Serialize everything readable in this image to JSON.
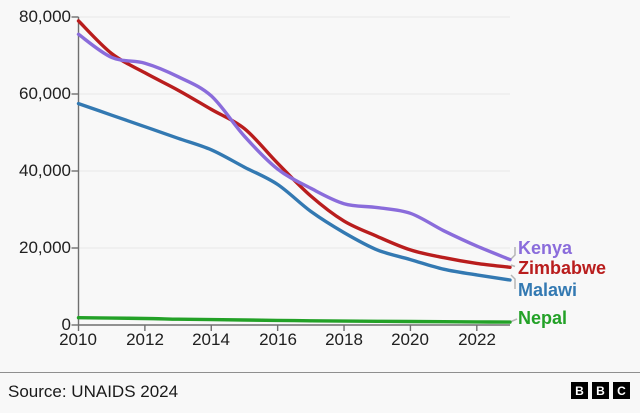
{
  "chart_data": {
    "type": "line",
    "x": [
      2010,
      2011,
      2012,
      2013,
      2014,
      2015,
      2016,
      2017,
      2018,
      2019,
      2020,
      2021,
      2022,
      2023
    ],
    "series": [
      {
        "name": "Kenya",
        "color": "#8a6cdb",
        "values": [
          75500,
          69500,
          68000,
          64500,
          59500,
          49000,
          40500,
          35500,
          31500,
          30500,
          29000,
          24500,
          20500,
          17000
        ]
      },
      {
        "name": "Zimbabwe",
        "color": "#b91d1d",
        "values": [
          79000,
          70500,
          65500,
          61000,
          56000,
          51000,
          42000,
          33500,
          27000,
          23000,
          19500,
          17500,
          16000,
          15000
        ]
      },
      {
        "name": "Malawi",
        "color": "#3379b2",
        "values": [
          57500,
          54500,
          51500,
          48500,
          45500,
          41000,
          36500,
          29500,
          24000,
          19500,
          17000,
          14500,
          13000,
          11700
        ]
      },
      {
        "name": "Nepal",
        "color": "#23a127",
        "values": [
          1900,
          1800,
          1700,
          1500,
          1400,
          1300,
          1200,
          1100,
          1000,
          950,
          900,
          850,
          800,
          750
        ]
      }
    ],
    "ylim": [
      0,
      80000
    ],
    "ytick_values": [
      80000,
      60000,
      40000,
      20000,
      0
    ],
    "ytick_labels": [
      "80,000",
      "60,000",
      "40,000",
      "20,000",
      "0"
    ],
    "xtick_values": [
      2010,
      2012,
      2014,
      2016,
      2018,
      2020,
      2022
    ],
    "xtick_labels": [
      "2010",
      "2012",
      "2014",
      "2016",
      "2018",
      "2020",
      "2022"
    ],
    "title": "",
    "xlabel": "",
    "ylabel": "",
    "grid": "horizontal",
    "legend_position": "right",
    "colors": {
      "axis": "#6f6f6f",
      "grid": "#e8e8e8",
      "tick_text": "#202020",
      "connector": "#b5b5b5",
      "background": "#f8f8f8"
    }
  },
  "footer": {
    "source": "Source: UNAIDS 2024",
    "logo_letters": [
      "B",
      "B",
      "C"
    ]
  }
}
